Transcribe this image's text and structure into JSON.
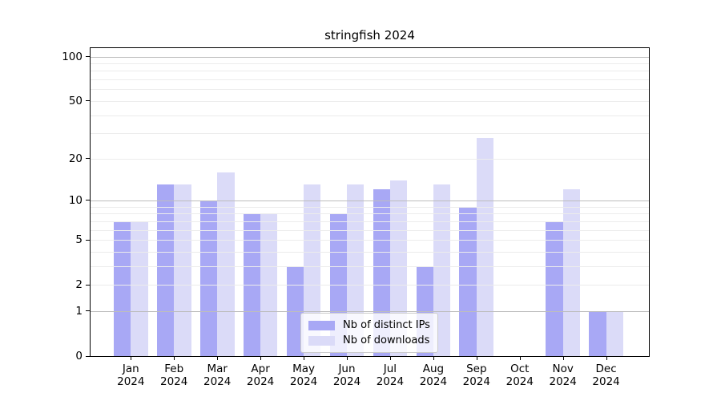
{
  "chart_data": {
    "type": "bar",
    "title": "stringfish 2024",
    "categories": [
      "Jan",
      "Feb",
      "Mar",
      "Apr",
      "May",
      "Jun",
      "Jul",
      "Aug",
      "Sep",
      "Oct",
      "Nov",
      "Dec"
    ],
    "year": "2024",
    "series": [
      {
        "name": "Nb of distinct IPs",
        "color": "#a8a8f5",
        "values": [
          7,
          13,
          10,
          8,
          3,
          8,
          12,
          3,
          9,
          0,
          7,
          1
        ]
      },
      {
        "name": "Nb of downloads",
        "color": "#dbdbf8",
        "values": [
          7,
          13,
          16,
          8,
          13,
          13,
          14,
          13,
          28,
          0,
          12,
          1
        ]
      }
    ],
    "y_scale": "log1p",
    "ylim": [
      0,
      114
    ],
    "y_ticks": [
      "0",
      "1",
      "2",
      "5",
      "10",
      "20",
      "50",
      "100"
    ],
    "y_tick_values": [
      0,
      1,
      2,
      5,
      10,
      20,
      50,
      100
    ],
    "y_major_gridlines": [
      1,
      10,
      100
    ],
    "y_minor_gridlines": [
      2,
      3,
      4,
      5,
      6,
      7,
      8,
      9,
      20,
      30,
      40,
      50,
      60,
      70,
      80,
      90
    ],
    "grid": true,
    "legend_position": "lower center",
    "colors": {
      "spine": "#000000",
      "major_grid": "#bdbdbd",
      "minor_grid": "#ececec"
    }
  }
}
